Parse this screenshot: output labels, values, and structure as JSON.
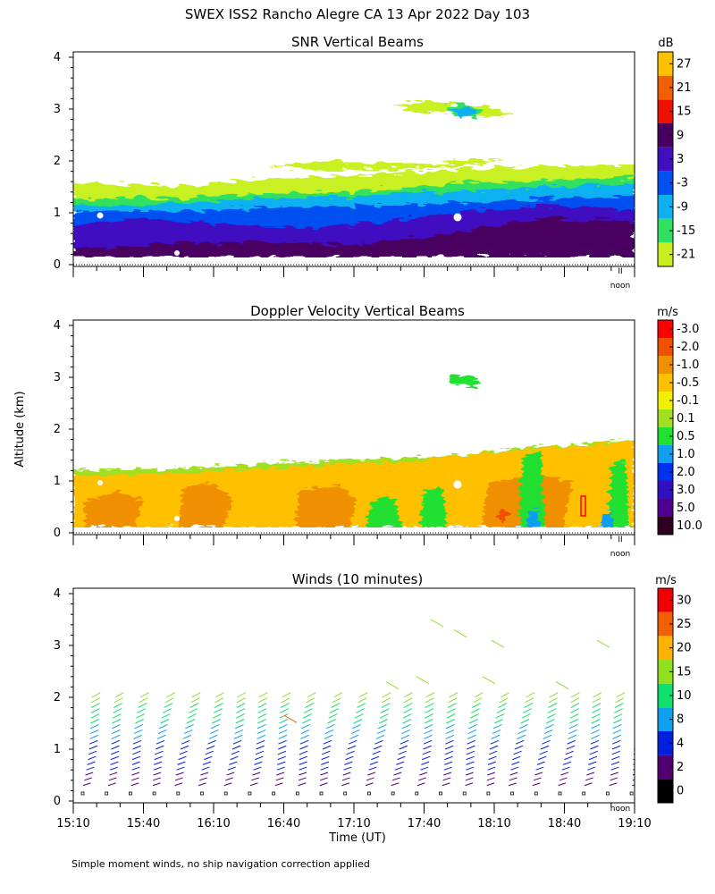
{
  "figure": {
    "title": "SWEX ISS2 Rancho Alegre CA  13 Apr 2022 Day 103",
    "ylabel": "Altitude (km)",
    "xlabel": "Time (UT)",
    "footnote": "Simple moment winds, no ship navigation correction applied",
    "noon_label": "noon",
    "noon_marker": "II"
  },
  "chart_data": [
    {
      "type": "heatmap",
      "title": "SNR Vertical Beams",
      "units": "dB",
      "ylim": [
        0,
        4
      ],
      "yticks": [
        "0",
        "1",
        "2",
        "3",
        "4"
      ],
      "colorbar": {
        "labels": [
          "-21",
          "-15",
          "-9",
          "-3",
          "3",
          "9",
          "15",
          "21",
          "27"
        ],
        "colors": [
          "#c8f020",
          "#30e060",
          "#10b0f0",
          "#0050f0",
          "#4010c0",
          "#480060",
          "#f01000",
          "#f06000",
          "#ffc000"
        ]
      },
      "summary": {
        "main_layer_top_km_start": 1.6,
        "main_layer_top_km_end": 1.8,
        "strongest_layer_km": [
          0.2,
          0.9
        ],
        "elevated_patch_km": [
          2.7,
          3.1
        ]
      }
    },
    {
      "type": "heatmap",
      "title": "Doppler Velocity Vertical Beams",
      "units": "m/s",
      "ylim": [
        0,
        4
      ],
      "yticks": [
        "0",
        "1",
        "2",
        "3",
        "4"
      ],
      "colorbar": {
        "labels": [
          "10.0",
          "5.0",
          "3.0",
          "2.0",
          "1.0",
          "0.5",
          "0.1",
          "-0.1",
          "-0.5",
          "-1.0",
          "-2.0",
          "-3.0"
        ],
        "colors": [
          "#300020",
          "#500090",
          "#3010c0",
          "#0030f0",
          "#10a0f0",
          "#20e030",
          "#a0e020",
          "#f0f000",
          "#ffc000",
          "#f09000",
          "#f05000",
          "#ff0000"
        ]
      },
      "summary": {
        "layer_top_km_start": 1.2,
        "layer_top_km_end": 1.7,
        "dominant_velocity_ms": "-0.5 to -1.0"
      }
    },
    {
      "type": "scatter",
      "title": "Winds (10 minutes)",
      "units": "m/s",
      "ylim": [
        0,
        4
      ],
      "yticks": [
        "0",
        "1",
        "2",
        "3",
        "4"
      ],
      "xlim": [
        "15:10",
        "19:10"
      ],
      "xticks": [
        "15:10",
        "15:40",
        "16:10",
        "16:40",
        "17:10",
        "17:40",
        "18:10",
        "18:40",
        "19:10"
      ],
      "colorbar": {
        "labels": [
          "0",
          "2",
          "4",
          "8",
          "10",
          "15",
          "20",
          "25",
          "30"
        ],
        "colors": [
          "#000000",
          "#500070",
          "#0020e0",
          "#10a0f0",
          "#10e070",
          "#90e020",
          "#ffb000",
          "#f06000",
          "#f00000"
        ]
      },
      "summary": {
        "profiles": 24,
        "profile_interval_min": 10,
        "wind_speed_low_km_ms": "2-8",
        "wind_speed_upper_km_ms": "10-20"
      }
    }
  ]
}
